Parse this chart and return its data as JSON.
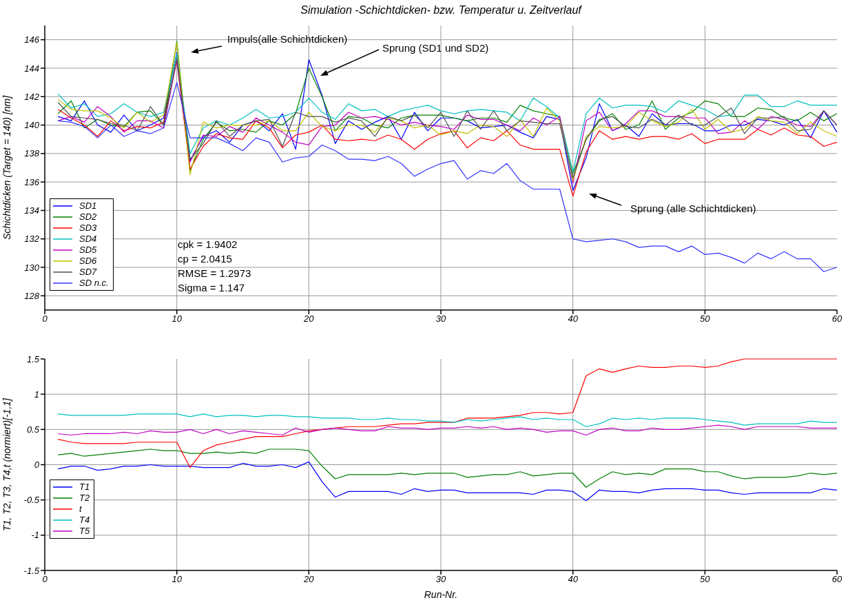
{
  "chart_data": [
    {
      "type": "line",
      "title": "Simulation -Schichtdicken- bzw. Temperatur u. Zeitverlauf",
      "ylabel": "Schichtdicken (Target = 140) [nm]",
      "x": [
        1,
        2,
        3,
        4,
        5,
        6,
        7,
        8,
        9,
        10,
        11,
        12,
        13,
        14,
        15,
        16,
        17,
        18,
        19,
        20,
        21,
        22,
        23,
        24,
        25,
        26,
        27,
        28,
        29,
        30,
        31,
        32,
        33,
        34,
        35,
        36,
        37,
        38,
        39,
        40,
        41,
        42,
        43,
        44,
        45,
        46,
        47,
        48,
        49,
        50,
        51,
        52,
        53,
        54,
        55,
        56,
        57,
        58,
        59,
        60
      ],
      "xlim": [
        0,
        60
      ],
      "xticks": [
        0,
        10,
        20,
        30,
        40,
        50,
        60
      ],
      "ylim": [
        127,
        147
      ],
      "yticks": [
        128,
        130,
        132,
        134,
        136,
        138,
        140,
        142,
        144,
        146
      ],
      "grid": true,
      "legend": "bottom left",
      "marker": "none",
      "line_style": "solid",
      "annotations": [
        "Impuls(alle Schichtdicken)",
        "Sprung (SD1 und SD2)",
        "Sprung (alle Schichtdicken)",
        "cpk = 1.9402",
        "cp = 2.0415",
        "RMSE = 1.2973",
        "Sigma = 1.147"
      ],
      "series": [
        {
          "name": "SD1",
          "color": "#0000ff",
          "values": [
            140.6,
            140.3,
            141.7,
            140.0,
            139.5,
            140.7,
            139.6,
            140.0,
            140.5,
            145.1,
            137.5,
            139.2,
            139.6,
            138.8,
            140.0,
            140.3,
            139.6,
            140.8,
            138.3,
            144.6,
            142.1,
            138.7,
            140.3,
            139.7,
            140.2,
            140.6,
            139.0,
            140.9,
            139.6,
            140.5,
            140.5,
            140.3,
            139.8,
            139.9,
            140.0,
            139.5,
            139.1,
            140.6,
            140.4,
            135.4,
            137.7,
            141.5,
            139.6,
            140.0,
            139.2,
            140.8,
            140.0,
            140.1,
            140.1,
            139.6,
            139.6,
            140.0,
            140.0,
            140.4,
            140.3,
            140.0,
            140.4,
            139.1,
            141.0,
            139.5
          ]
        },
        {
          "name": "SD2",
          "color": "#008000",
          "values": [
            140.8,
            141.7,
            139.8,
            140.4,
            140.0,
            139.9,
            140.9,
            141.0,
            140.0,
            145.9,
            136.8,
            139.0,
            140.2,
            139.6,
            139.7,
            139.5,
            140.3,
            140.0,
            140.8,
            144.0,
            142.0,
            139.6,
            140.6,
            140.5,
            140.0,
            139.8,
            140.5,
            140.7,
            140.7,
            140.7,
            140.5,
            140.3,
            140.5,
            140.5,
            140.2,
            141.4,
            141.0,
            140.8,
            140.6,
            136.6,
            139.0,
            140.3,
            140.8,
            139.7,
            140.0,
            141.7,
            139.7,
            140.5,
            140.9,
            141.7,
            141.5,
            140.6,
            140.6,
            141.2,
            141.1,
            140.5,
            140.3,
            140.9,
            140.3,
            140.8
          ]
        },
        {
          "name": "SD3",
          "color": "#ff0000",
          "values": [
            141.1,
            140.5,
            140.0,
            139.2,
            140.3,
            139.6,
            139.9,
            139.8,
            140.2,
            144.5,
            136.9,
            138.5,
            139.4,
            139.1,
            139.0,
            140.3,
            139.8,
            138.4,
            139.3,
            139.5,
            140.0,
            139.0,
            138.9,
            139.0,
            138.9,
            139.3,
            139.0,
            138.3,
            139.0,
            139.4,
            139.6,
            138.4,
            139.1,
            138.9,
            139.6,
            138.6,
            138.3,
            138.3,
            138.3,
            135.0,
            138.1,
            139.6,
            139.0,
            139.2,
            139.0,
            139.2,
            139.2,
            139.0,
            139.4,
            138.7,
            139.0,
            139.0,
            139.0,
            139.7,
            139.3,
            139.8,
            139.3,
            139.2,
            138.5,
            138.8
          ]
        },
        {
          "name": "SD4",
          "color": "#00c0c0",
          "values": [
            142.2,
            141.2,
            141.5,
            140.6,
            140.8,
            141.5,
            140.9,
            140.6,
            140.9,
            145.0,
            138.0,
            139.8,
            140.3,
            140.0,
            140.5,
            141.1,
            140.5,
            140.6,
            140.9,
            141.9,
            140.9,
            140.4,
            141.5,
            141.0,
            141.1,
            140.6,
            141.0,
            141.2,
            141.4,
            141.0,
            140.8,
            141.0,
            141.1,
            141.0,
            140.9,
            140.3,
            141.9,
            141.3,
            140.5,
            136.7,
            140.8,
            141.9,
            141.2,
            141.4,
            141.4,
            141.3,
            140.9,
            141.7,
            141.4,
            141.1,
            140.6,
            140.7,
            142.1,
            142.1,
            141.3,
            141.3,
            141.7,
            141.4,
            141.4,
            141.4
          ]
        },
        {
          "name": "SD5",
          "color": "#c000c0",
          "values": [
            140.3,
            140.6,
            140.2,
            141.3,
            140.6,
            139.5,
            140.3,
            140.3,
            139.8,
            144.6,
            137.4,
            139.3,
            139.2,
            139.9,
            139.5,
            140.5,
            140.0,
            139.5,
            138.8,
            138.6,
            139.9,
            140.0,
            140.9,
            140.5,
            140.6,
            140.4,
            140.0,
            140.2,
            140.0,
            139.9,
            139.7,
            140.7,
            140.4,
            140.4,
            140.0,
            139.6,
            140.5,
            140.0,
            140.6,
            135.9,
            140.3,
            140.9,
            139.6,
            140.1,
            141.0,
            141.0,
            140.6,
            140.6,
            140.5,
            140.5,
            139.4,
            139.5,
            140.3,
            139.7,
            140.6,
            140.4,
            140.0,
            139.9,
            141.0,
            140.0
          ]
        },
        {
          "name": "SD6",
          "color": "#c0c000",
          "values": [
            141.8,
            141.1,
            141.0,
            141.0,
            140.5,
            139.8,
            140.9,
            140.2,
            140.7,
            145.8,
            136.5,
            140.2,
            139.8,
            140.0,
            140.0,
            140.0,
            140.3,
            139.6,
            139.6,
            140.9,
            139.9,
            139.6,
            140.0,
            140.0,
            139.5,
            140.5,
            140.3,
            139.8,
            140.0,
            139.3,
            139.6,
            139.4,
            140.0,
            139.9,
            139.2,
            140.4,
            139.2,
            141.2,
            140.3,
            136.1,
            139.2,
            139.9,
            139.8,
            139.9,
            140.9,
            140.3,
            139.9,
            140.2,
            141.1,
            139.7,
            140.4,
            139.5,
            139.7,
            140.6,
            140.3,
            140.2,
            139.4,
            140.2,
            139.6,
            139.2
          ]
        },
        {
          "name": "SD7",
          "color": "#505050",
          "values": [
            141.6,
            140.6,
            140.5,
            140.4,
            140.1,
            140.0,
            139.6,
            141.3,
            140.0,
            144.7,
            137.6,
            138.7,
            140.3,
            139.2,
            140.0,
            140.3,
            140.4,
            138.5,
            140.9,
            140.6,
            140.6,
            140.2,
            140.5,
            140.3,
            139.2,
            140.6,
            140.3,
            140.7,
            139.8,
            140.9,
            139.2,
            141.0,
            139.7,
            141.0,
            139.6,
            140.3,
            140.2,
            140.1,
            140.1,
            136.3,
            139.0,
            140.4,
            140.6,
            139.9,
            139.8,
            140.4,
            140.0,
            140.7,
            140.0,
            140.0,
            140.6,
            141.2,
            139.4,
            140.5,
            140.5,
            140.6,
            139.6,
            139.7,
            141.0,
            140.0
          ]
        },
        {
          "name": "SD n.c.",
          "color": "#3333ff",
          "values": [
            140.3,
            140.2,
            139.9,
            139.1,
            140.0,
            139.2,
            139.6,
            139.4,
            139.8,
            143.0,
            139.1,
            139.1,
            139.1,
            138.7,
            138.2,
            139.1,
            138.8,
            137.4,
            137.7,
            137.8,
            138.6,
            138.2,
            137.6,
            137.6,
            137.5,
            137.8,
            137.3,
            136.4,
            136.9,
            137.3,
            137.5,
            136.2,
            136.8,
            136.6,
            137.3,
            136.1,
            135.5,
            135.5,
            135.5,
            132.0,
            131.8,
            131.9,
            132.0,
            131.8,
            131.4,
            131.5,
            131.5,
            131.1,
            131.5,
            130.9,
            131.0,
            130.7,
            130.3,
            131.0,
            130.6,
            131.1,
            130.6,
            130.6,
            129.7,
            130.0
          ]
        }
      ]
    },
    {
      "type": "line",
      "xlabel": "Run-Nr.",
      "ylabel": "T1, T2, T3, T4,t (normiert)[-1,1]",
      "x": [
        1,
        2,
        3,
        4,
        5,
        6,
        7,
        8,
        9,
        10,
        11,
        12,
        13,
        14,
        15,
        16,
        17,
        18,
        19,
        20,
        21,
        22,
        23,
        24,
        25,
        26,
        27,
        28,
        29,
        30,
        31,
        32,
        33,
        34,
        35,
        36,
        37,
        38,
        39,
        40,
        41,
        42,
        43,
        44,
        45,
        46,
        47,
        48,
        49,
        50,
        51,
        52,
        53,
        54,
        55,
        56,
        57,
        58,
        59,
        60
      ],
      "xlim": [
        0,
        60
      ],
      "xticks": [
        0,
        10,
        20,
        30,
        40,
        50,
        60
      ],
      "ylim": [
        -1.5,
        1.5
      ],
      "yticks": [
        -1.5,
        -1,
        -0.5,
        0,
        0.5,
        1,
        1.5
      ],
      "grid": true,
      "legend": "bottom left",
      "marker": "none",
      "line_style": "solid",
      "series": [
        {
          "name": "T1",
          "color": "#0000ff",
          "values": [
            -0.06,
            -0.02,
            -0.02,
            -0.08,
            -0.06,
            -0.02,
            -0.02,
            0,
            -0.02,
            -0.02,
            -0.02,
            -0.04,
            -0.04,
            -0.04,
            0.02,
            -0.02,
            -0.02,
            0,
            -0.04,
            0.04,
            -0.24,
            -0.46,
            -0.38,
            -0.38,
            -0.38,
            -0.38,
            -0.42,
            -0.34,
            -0.38,
            -0.36,
            -0.36,
            -0.4,
            -0.4,
            -0.4,
            -0.4,
            -0.4,
            -0.42,
            -0.36,
            -0.36,
            -0.38,
            -0.51,
            -0.36,
            -0.38,
            -0.38,
            -0.4,
            -0.36,
            -0.34,
            -0.34,
            -0.34,
            -0.36,
            -0.36,
            -0.4,
            -0.42,
            -0.4,
            -0.4,
            -0.4,
            -0.4,
            -0.4,
            -0.34,
            -0.36
          ]
        },
        {
          "name": "T2",
          "color": "#008000",
          "values": [
            0.14,
            0.16,
            0.12,
            0.14,
            0.16,
            0.18,
            0.2,
            0.22,
            0.2,
            0.2,
            0.16,
            0.16,
            0.18,
            0.16,
            0.18,
            0.16,
            0.22,
            0.22,
            0.22,
            0.2,
            -0.02,
            -0.2,
            -0.14,
            -0.14,
            -0.14,
            -0.14,
            -0.12,
            -0.14,
            -0.12,
            -0.12,
            -0.12,
            -0.18,
            -0.16,
            -0.14,
            -0.14,
            -0.1,
            -0.16,
            -0.14,
            -0.12,
            -0.12,
            -0.32,
            -0.2,
            -0.1,
            -0.14,
            -0.12,
            -0.14,
            -0.06,
            -0.06,
            -0.06,
            -0.1,
            -0.1,
            -0.16,
            -0.2,
            -0.18,
            -0.18,
            -0.18,
            -0.16,
            -0.12,
            -0.14,
            -0.12
          ]
        },
        {
          "name": "t",
          "color": "#ff0000",
          "values": [
            0.36,
            0.32,
            0.3,
            0.3,
            0.3,
            0.3,
            0.32,
            0.32,
            0.32,
            0.32,
            -0.04,
            0.2,
            0.28,
            0.32,
            0.36,
            0.4,
            0.4,
            0.4,
            0.44,
            0.48,
            0.5,
            0.52,
            0.54,
            0.54,
            0.54,
            0.56,
            0.58,
            0.58,
            0.6,
            0.6,
            0.6,
            0.66,
            0.66,
            0.66,
            0.68,
            0.7,
            0.74,
            0.74,
            0.72,
            0.74,
            1.26,
            1.36,
            1.31,
            1.36,
            1.4,
            1.38,
            1.38,
            1.4,
            1.4,
            1.38,
            1.4,
            1.46,
            1.5,
            1.5,
            1.5,
            1.5,
            1.5,
            1.5,
            1.5,
            1.5
          ]
        },
        {
          "name": "T4",
          "color": "#00c0c0",
          "values": [
            0.72,
            0.7,
            0.7,
            0.7,
            0.7,
            0.7,
            0.72,
            0.72,
            0.72,
            0.72,
            0.68,
            0.72,
            0.68,
            0.7,
            0.7,
            0.68,
            0.7,
            0.7,
            0.68,
            0.68,
            0.66,
            0.66,
            0.66,
            0.64,
            0.64,
            0.66,
            0.64,
            0.64,
            0.62,
            0.62,
            0.6,
            0.64,
            0.62,
            0.64,
            0.66,
            0.68,
            0.64,
            0.66,
            0.64,
            0.64,
            0.54,
            0.58,
            0.66,
            0.64,
            0.66,
            0.64,
            0.66,
            0.66,
            0.66,
            0.64,
            0.62,
            0.6,
            0.56,
            0.58,
            0.58,
            0.58,
            0.58,
            0.62,
            0.6,
            0.6
          ]
        },
        {
          "name": "T5",
          "color": "#c000c0",
          "values": [
            0.44,
            0.42,
            0.44,
            0.44,
            0.44,
            0.46,
            0.44,
            0.48,
            0.46,
            0.46,
            0.5,
            0.44,
            0.5,
            0.44,
            0.48,
            0.46,
            0.44,
            0.42,
            0.52,
            0.46,
            0.5,
            0.52,
            0.5,
            0.48,
            0.48,
            0.54,
            0.52,
            0.52,
            0.5,
            0.52,
            0.52,
            0.54,
            0.52,
            0.54,
            0.5,
            0.52,
            0.5,
            0.46,
            0.48,
            0.48,
            0.42,
            0.5,
            0.52,
            0.48,
            0.48,
            0.52,
            0.5,
            0.5,
            0.52,
            0.54,
            0.56,
            0.54,
            0.5,
            0.54,
            0.54,
            0.54,
            0.54,
            0.52,
            0.52,
            0.52
          ]
        }
      ]
    }
  ]
}
